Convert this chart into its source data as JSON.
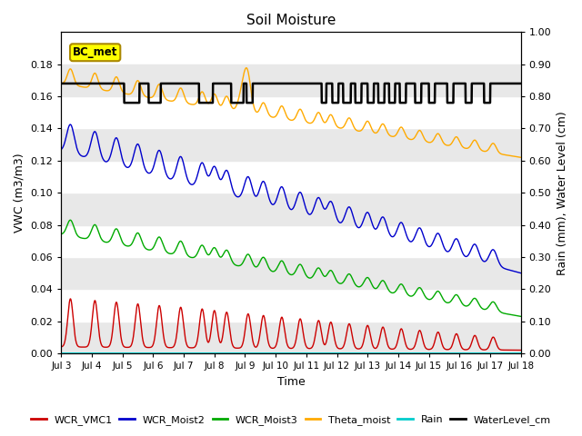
{
  "title": "Soil Moisture",
  "xlabel": "Time",
  "ylabel_left": "VWC (m3/m3)",
  "ylabel_right": "Rain (mm), Water Level (cm)",
  "xlim_days": [
    3,
    18
  ],
  "ylim_left": [
    0.0,
    0.2
  ],
  "ylim_right": [
    0.0,
    1.0
  ],
  "yticks_left": [
    0.0,
    0.02,
    0.04,
    0.06,
    0.08,
    0.1,
    0.12,
    0.14,
    0.16,
    0.18
  ],
  "yticks_right": [
    0.0,
    0.1,
    0.2,
    0.3,
    0.4,
    0.5,
    0.6,
    0.7,
    0.8,
    0.9,
    1.0
  ],
  "xtick_labels": [
    "Jul 3",
    "Jul 4",
    "Jul 5",
    "Jul 6",
    "Jul 7",
    "Jul 8",
    "Jul 9",
    "Jul 10",
    "Jul 11",
    "Jul 12",
    "Jul 13",
    "Jul 14",
    "Jul 15",
    "Jul 16",
    "Jul 17",
    "Jul 18"
  ],
  "colors": {
    "WCR_VMC1": "#cc0000",
    "WCR_Moist2": "#0000cc",
    "WCR_Moist3": "#00aa00",
    "Theta_moist": "#ffaa00",
    "Rain": "#00cccc",
    "WaterLevel_cm": "#000000"
  },
  "background_alternating": [
    "#e8e8e8",
    "#ffffff"
  ],
  "bc_met_box_color": "#ffff00",
  "bc_met_border_color": "#aa8800",
  "water_high": 0.84,
  "water_low": 0.78
}
